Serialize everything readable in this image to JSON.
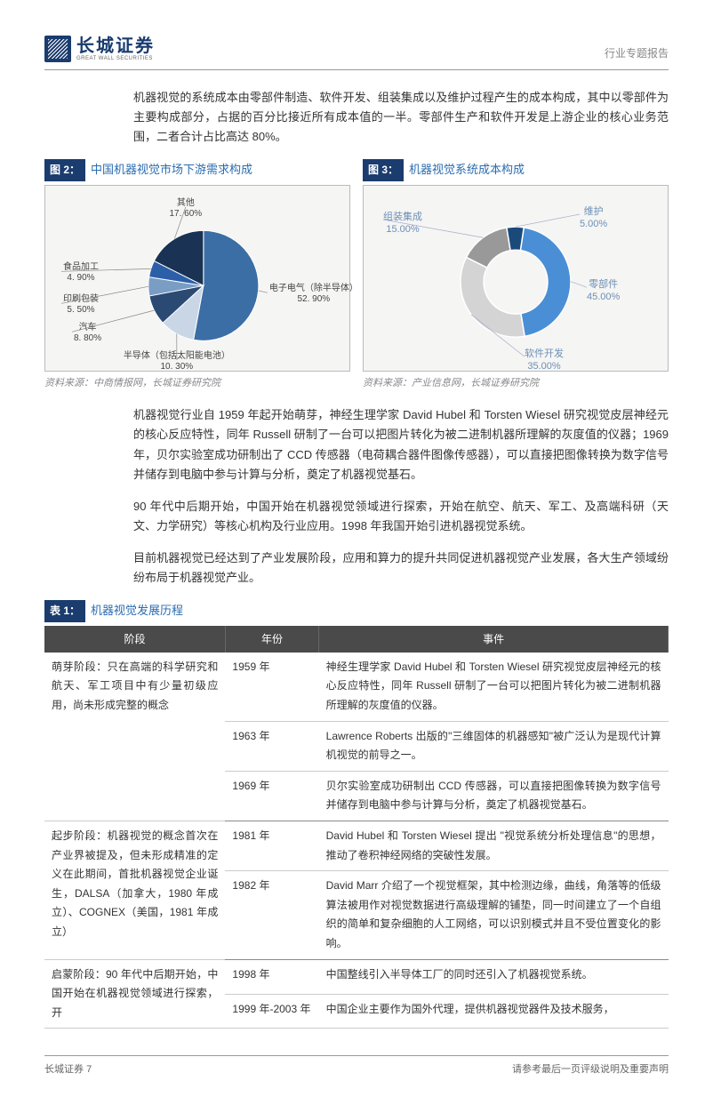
{
  "header": {
    "logo_cn": "长城证券",
    "logo_en": "GREAT WALL SECURITIES",
    "doc_type": "行业专题报告"
  },
  "intro_para": "机器视觉的系统成本由零部件制造、软件开发、组装集成以及维护过程产生的成本构成，其中以零部件为主要构成部分，占据的百分比接近所有成本值的一半。零部件生产和软件开发是上游企业的核心业务范围，二者合计占比高达 80%。",
  "chart2": {
    "num": "图 2：",
    "title": "中国机器视觉市场下游需求构成",
    "type": "pie",
    "background_color": "#f5f5f3",
    "slices": [
      {
        "label": "电子电气（除半导体）",
        "pct": "52. 90%",
        "value": 52.9,
        "color": "#3b6ea5"
      },
      {
        "label": "半导体（包括太阳能电池）",
        "pct": "10. 30%",
        "value": 10.3,
        "color": "#c9d6e6"
      },
      {
        "label": "汽车",
        "pct": "8. 80%",
        "value": 8.8,
        "color": "#2b4a73"
      },
      {
        "label": "印刷包装",
        "pct": "5. 50%",
        "value": 5.5,
        "color": "#7a9dc4"
      },
      {
        "label": "食品加工",
        "pct": "4. 90%",
        "value": 4.9,
        "color": "#2b5fa8"
      },
      {
        "label": "其他",
        "pct": "17. 60%",
        "value": 17.6,
        "color": "#1a3354"
      }
    ],
    "source": "资料来源：中商情报网，长城证券研究院"
  },
  "chart3": {
    "num": "图 3：",
    "title": "机器视觉系统成本构成",
    "type": "donut",
    "background_color": "#f5f5f3",
    "inner_radius_ratio": 0.58,
    "slices": [
      {
        "label": "零部件",
        "pct": "45.00%",
        "value": 45.0,
        "color": "#4a8fd6"
      },
      {
        "label": "软件开发",
        "pct": "35.00%",
        "value": 35.0,
        "color": "#d4d4d4"
      },
      {
        "label": "组装集成",
        "pct": "15.00%",
        "value": 15.0,
        "color": "#999999"
      },
      {
        "label": "维护",
        "pct": "5.00%",
        "value": 5.0,
        "color": "#1a4a7a"
      }
    ],
    "source": "资料来源：产业信息网，长城证券研究院"
  },
  "para2": "机器视觉行业自 1959 年起开始萌芽，神经生理学家 David Hubel 和 Torsten Wiesel 研究视觉皮层神经元的核心反应特性，同年 Russell 研制了一台可以把图片转化为被二进制机器所理解的灰度值的仪器；1969 年，贝尔实验室成功研制出了 CCD 传感器（电荷耦合器件图像传感器），可以直接把图像转换为数字信号并储存到电脑中参与计算与分析，奠定了机器视觉基石。",
  "para3": "90 年代中后期开始，中国开始在机器视觉领域进行探索，开始在航空、航天、军工、及高端科研（天文、力学研究）等核心机构及行业应用。1998 年我国开始引进机器视觉系统。",
  "para4": "目前机器视觉已经达到了产业发展阶段，应用和算力的提升共同促进机器视觉产业发展，各大生产领域纷纷布局于机器视觉产业。",
  "table1": {
    "num": "表 1：",
    "title": "机器视觉发展历程",
    "columns": [
      "阶段",
      "年份",
      "事件"
    ],
    "rows": [
      {
        "stage": "萌芽阶段：只在高端的科学研究和航天、军工项目中有少量初级应用，尚未形成完整的概念",
        "year": "1959 年",
        "event": "神经生理学家 David Hubel 和 Torsten Wiesel 研究视觉皮层神经元的核心反应特性，同年 Russell 研制了一台可以把图片转化为被二进制机器所理解的灰度值的仪器。",
        "rowspan": 3,
        "sep": false
      },
      {
        "stage": "",
        "year": "1963 年",
        "event": "Lawrence Roberts 出版的\"三维固体的机器感知\"被广泛认为是现代计算机视觉的前导之一。",
        "sep": false
      },
      {
        "stage": "",
        "year": "1969 年",
        "event": "贝尔实验室成功研制出 CCD 传感器，可以直接把图像转换为数字信号并储存到电脑中参与计算与分析，奠定了机器视觉基石。",
        "sep": true
      },
      {
        "stage": "起步阶段：机器视觉的概念首次在产业界被提及，但未形成精准的定义在此期间，首批机器视觉企业诞生，DALSA（加拿大，1980 年成立）、COGNEX（美国，1981 年成立）",
        "year": "1981 年",
        "event": "David Hubel 和 Torsten Wiesel 提出 \"视觉系统分析处理信息\"的思想，推动了卷积神经网络的突破性发展。",
        "rowspan": 2,
        "sep": false
      },
      {
        "stage": "",
        "year": "1982 年",
        "event": "David Marr 介绍了一个视觉框架，其中检测边缘，曲线，角落等的低级算法被用作对视觉数据进行高级理解的铺垫，同一时间建立了一个自组织的简单和复杂细胞的人工网络，可以识别模式并且不受位置变化的影响。",
        "sep": true
      },
      {
        "stage": "启蒙阶段：90 年代中后期开始，中国开始在机器视觉领域进行探索，开",
        "year": "1998 年",
        "event": "中国整线引入半导体工厂的同时还引入了机器视觉系统。",
        "rowspan": 2,
        "sep": false
      },
      {
        "stage": "",
        "year": "1999 年-2003 年",
        "event": "中国企业主要作为国外代理，提供机器视觉器件及技术服务，",
        "sep": false
      }
    ]
  },
  "footer": {
    "left": "长城证券",
    "page": "7",
    "right": "请参考最后一页评级说明及重要声明"
  }
}
